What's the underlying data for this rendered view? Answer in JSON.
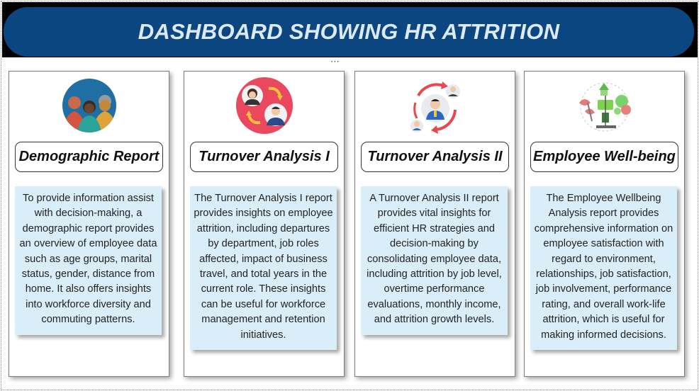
{
  "header": {
    "title": "DASHBOARD SHOWING HR ATTRITION",
    "more_options_label": "⋯",
    "colors": {
      "banner": "#0b4680",
      "banner_text": "#dceaf8",
      "desc_box": "#d9eef9"
    }
  },
  "cards": [
    {
      "title": "Demographic Report",
      "icon": "diverse-people-icon",
      "description": "To provide information assist with decision-making, a demographic report provides an overview of employee data such as age groups, marital status, gender, distance from home. It also offers insights into workforce diversity and commuting patterns."
    },
    {
      "title": "Turnover Analysis I",
      "icon": "employee-swap-icon",
      "description": "The Turnover Analysis I report provides insights on employee attrition, including departures by department, job roles affected, impact of business travel, and total years in the current role. These insights can be useful for workforce management and retention initiatives."
    },
    {
      "title": "Turnover Analysis II",
      "icon": "employee-cycle-icon",
      "description": "A Turnover Analysis II report provides vital insights for efficient HR strategies and decision-making by consolidating employee data, including attrition by job level, overtime performance evaluations, monthly income, and attrition growth levels."
    },
    {
      "title": "Employee Well-being",
      "icon": "wellbeing-plants-icon",
      "description": "The Employee Wellbeing Analysis report provides comprehensive information on employee satisfaction with regard to environment, relationships, job satisfaction, job involvement, performance rating, and overall work-life attrition, which is useful for making informed decisions."
    }
  ]
}
